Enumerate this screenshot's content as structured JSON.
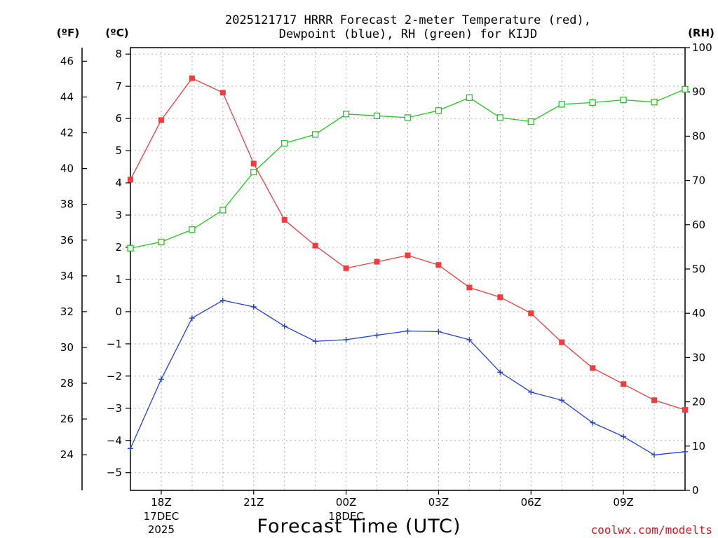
{
  "chart_data": {
    "type": "line",
    "title_line1": "2025121717 HRRR Forecast 2-meter Temperature (red),",
    "title_line2": "Dewpoint (blue), RH (green) for KIJD",
    "xlabel": "Forecast Time (UTC)",
    "credit": "coolwx.com/modelts",
    "units": {
      "fahrenheit": "(ºF)",
      "celsius": "(ºC)",
      "rh": "(RH)"
    },
    "x_hours": [
      0,
      1,
      2,
      3,
      4,
      5,
      6,
      7,
      8,
      9,
      10,
      11,
      12,
      13,
      14,
      15,
      16,
      17,
      18
    ],
    "xlim": [
      0,
      18
    ],
    "x_ticks": [
      {
        "hour": 1,
        "label": "18Z",
        "sub1": "17DEC",
        "sub2": "2025"
      },
      {
        "hour": 4,
        "label": "21Z",
        "sub1": "",
        "sub2": ""
      },
      {
        "hour": 7,
        "label": "00Z",
        "sub1": "18DEC",
        "sub2": ""
      },
      {
        "hour": 10,
        "label": "03Z",
        "sub1": "",
        "sub2": ""
      },
      {
        "hour": 13,
        "label": "06Z",
        "sub1": "",
        "sub2": ""
      },
      {
        "hour": 16,
        "label": "09Z",
        "sub1": "",
        "sub2": ""
      }
    ],
    "celsius_axis": {
      "ylim": [
        -5.55,
        8.2
      ],
      "ticks": [
        8,
        7,
        6,
        5,
        4,
        3,
        2,
        1,
        0,
        -1,
        -2,
        -3,
        -4,
        -5
      ],
      "labels": [
        "8",
        "7",
        "6",
        "5",
        "4",
        "3",
        "2",
        "1",
        "0",
        "−1",
        "−2",
        "−3",
        "−4",
        "−5"
      ]
    },
    "fahrenheit_axis": {
      "ticks": [
        46,
        44,
        42,
        40,
        38,
        36,
        34,
        32,
        30,
        28,
        26,
        24
      ]
    },
    "rh_axis": {
      "ylim": [
        0,
        100
      ],
      "ticks": [
        100,
        90,
        80,
        70,
        60,
        50,
        40,
        30,
        20,
        10,
        0
      ]
    },
    "series": [
      {
        "name": "Temperature",
        "axis": "celsius",
        "color": "#f03c3c",
        "marker": "filled-square",
        "values": [
          4.1,
          5.95,
          7.25,
          6.8,
          4.6,
          2.85,
          2.05,
          1.35,
          1.55,
          1.75,
          1.45,
          0.75,
          0.45,
          -0.05,
          -0.95,
          -1.75,
          -2.25,
          -2.75,
          -3.05
        ]
      },
      {
        "name": "Dewpoint",
        "axis": "celsius",
        "color": "#2040e0",
        "marker": "plus",
        "values": [
          -4.25,
          -2.1,
          -0.2,
          0.35,
          0.15,
          -0.45,
          -0.92,
          -0.87,
          -0.73,
          -0.6,
          -0.62,
          -0.87,
          -1.88,
          -2.5,
          -2.75,
          -3.45,
          -3.88,
          -4.45,
          -4.35
        ]
      },
      {
        "name": "RH",
        "axis": "rh",
        "color": "#20c820",
        "marker": "open-square",
        "values": [
          54.7,
          56.1,
          58.9,
          63.3,
          71.9,
          78.4,
          80.4,
          85.0,
          84.6,
          84.2,
          85.8,
          88.7,
          84.2,
          83.3,
          87.2,
          87.6,
          88.2,
          87.7,
          90.6
        ]
      }
    ]
  }
}
